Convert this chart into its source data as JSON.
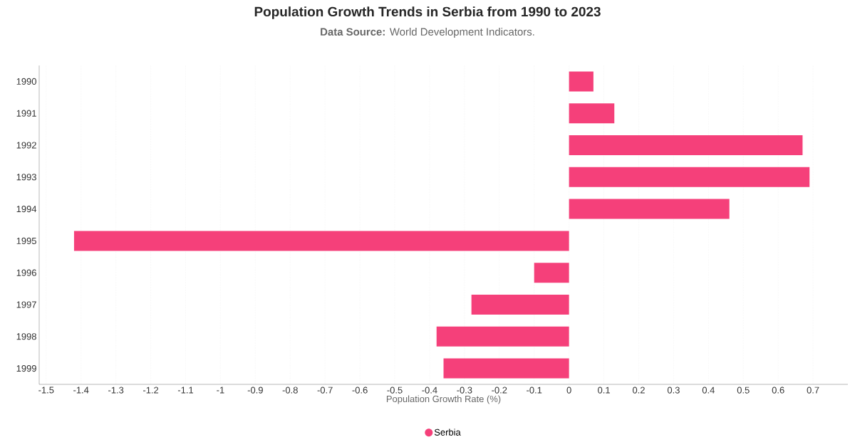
{
  "chart_data": {
    "type": "bar",
    "orientation": "horizontal",
    "title": "Population Growth Trends in Serbia from 1990 to 2023",
    "subtitle": "**Data Source:** World Development Indicators.",
    "xlabel": "Population Growth Rate (%)",
    "categories": [
      "1990",
      "1991",
      "1992",
      "1993",
      "1994",
      "1995",
      "1996",
      "1997",
      "1998",
      "1999"
    ],
    "series": [
      {
        "name": "Serbia",
        "color": "#f5407a",
        "values": [
          0.07,
          0.13,
          0.67,
          0.69,
          0.46,
          -1.42,
          -0.1,
          -0.28,
          -0.38,
          -0.36
        ]
      }
    ],
    "xlim": [
      -1.52,
      0.8
    ],
    "xticks": [
      -1.5,
      -1.4,
      -1.3,
      -1.2,
      -1.1,
      -1,
      -0.9,
      -0.8,
      -0.7,
      -0.6,
      -0.5,
      -0.4,
      -0.3,
      -0.2,
      -0.1,
      0,
      0.1,
      0.2,
      0.3,
      0.4,
      0.5,
      0.6,
      0.7
    ],
    "grid": "x",
    "legend": "bottom"
  }
}
